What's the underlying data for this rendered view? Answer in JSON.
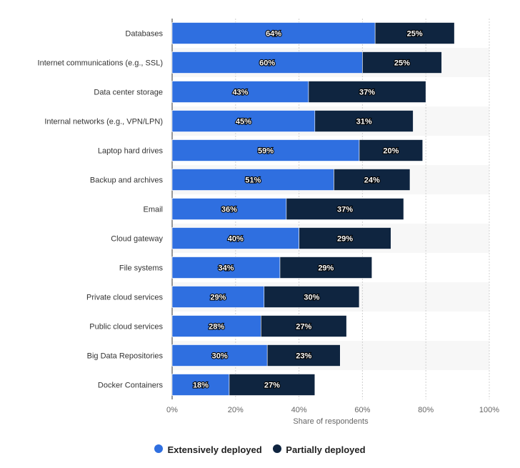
{
  "chart_data": {
    "type": "bar",
    "orientation": "horizontal",
    "stacked": true,
    "categories": [
      "Databases",
      "Internet communications (e.g., SSL)",
      "Data center storage",
      "Internal networks (e.g., VPN/LPN)",
      "Laptop hard drives",
      "Backup and archives",
      "Email",
      "Cloud gateway",
      "File systems",
      "Private cloud services",
      "Public cloud services",
      "Big Data Repositories",
      "Docker Containers"
    ],
    "series": [
      {
        "name": "Extensively deployed",
        "color": "#2f6fe0",
        "values": [
          64,
          60,
          43,
          45,
          59,
          51,
          36,
          40,
          34,
          29,
          28,
          30,
          18
        ],
        "labels": [
          "64%",
          "60%",
          "43%",
          "45%",
          "59%",
          "51%",
          "36%",
          "40%",
          "34%",
          "29%",
          "28%",
          "30%",
          "18%"
        ]
      },
      {
        "name": "Partially deployed",
        "color": "#0f2540",
        "values": [
          25,
          25,
          37,
          31,
          20,
          24,
          37,
          29,
          29,
          30,
          27,
          23,
          27
        ],
        "labels": [
          "25%",
          "25%",
          "37%",
          "31%",
          "20%",
          "24%",
          "37%",
          "29%",
          "29%",
          "30%",
          "27%",
          "23%",
          "27%"
        ]
      }
    ],
    "xlabel": "Share of respondents",
    "xlim": [
      0,
      100
    ],
    "xticks": [
      "0%",
      "20%",
      "40%",
      "60%",
      "80%",
      "100%"
    ],
    "grid": true,
    "legend_position": "bottom"
  }
}
